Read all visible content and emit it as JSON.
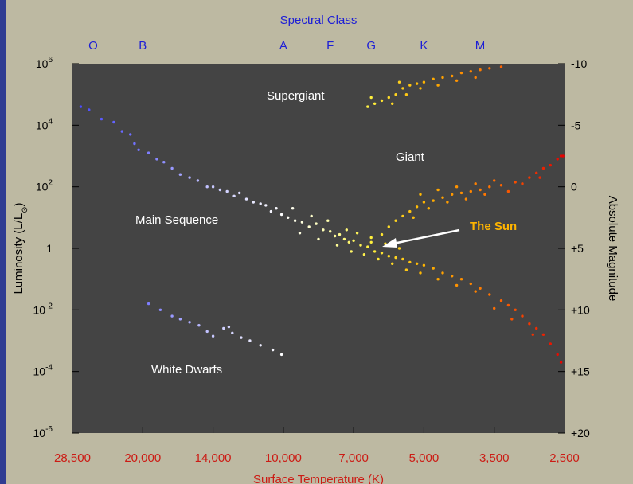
{
  "chart_data": {
    "type": "scatter",
    "title": "",
    "top_axis": {
      "title": "Spectral Class",
      "classes": [
        {
          "label": "O",
          "temp": 26000
        },
        {
          "label": "B",
          "temp": 20000
        },
        {
          "label": "A",
          "temp": 10000
        },
        {
          "label": "F",
          "temp": 8000
        },
        {
          "label": "G",
          "temp": 6500
        },
        {
          "label": "K",
          "temp": 5000
        },
        {
          "label": "M",
          "temp": 3800
        }
      ]
    },
    "x_axis": {
      "title": "Surface Temperature (K)",
      "ticks": [
        {
          "label": "28,500",
          "value": 28500
        },
        {
          "label": "20,000",
          "value": 20000
        },
        {
          "label": "14,000",
          "value": 14000
        },
        {
          "label": "10,000",
          "value": 10000
        },
        {
          "label": "7,000",
          "value": 7000
        },
        {
          "label": "5,000",
          "value": 5000
        },
        {
          "label": "3,500",
          "value": 3500
        },
        {
          "label": "2,500",
          "value": 2500
        }
      ]
    },
    "y_left": {
      "title_main": "Luminosity (L/L",
      "title_sub": "⊙",
      "title_end": ")",
      "ticks": [
        {
          "base": "10",
          "exp": "6",
          "value": 6
        },
        {
          "base": "10",
          "exp": "4",
          "value": 4
        },
        {
          "base": "10",
          "exp": "2",
          "value": 2
        },
        {
          "base": "1",
          "exp": "",
          "value": 0
        },
        {
          "base": "10",
          "exp": "-2",
          "value": -2
        },
        {
          "base": "10",
          "exp": "-4",
          "value": -4
        },
        {
          "base": "10",
          "exp": "-6",
          "value": -6
        }
      ]
    },
    "y_right": {
      "title": "Absolute Magnitude",
      "ticks": [
        "-10",
        "-5",
        "0",
        "+5",
        "+10",
        "+15",
        "+20"
      ]
    },
    "regions": {
      "supergiant": "Supergiant",
      "giant": "Giant",
      "main_sequence": "Main Sequence",
      "white_dwarfs": "White Dwarfs",
      "sun": "The Sun"
    },
    "series": [
      {
        "group": "main-sequence",
        "points": [
          [
            27500,
            4.6
          ],
          [
            26500,
            4.5
          ],
          [
            25000,
            4.2
          ],
          [
            23500,
            4.1
          ],
          [
            22500,
            3.8
          ],
          [
            21500,
            3.7
          ],
          [
            21000,
            3.4
          ],
          [
            20500,
            3.2
          ],
          [
            19500,
            3.1
          ],
          [
            18800,
            2.9
          ],
          [
            18200,
            2.8
          ],
          [
            17500,
            2.6
          ],
          [
            16800,
            2.4
          ],
          [
            16000,
            2.3
          ],
          [
            15300,
            2.2
          ],
          [
            14500,
            2.0
          ],
          [
            14000,
            2.0
          ],
          [
            13600,
            1.9
          ],
          [
            13200,
            1.85
          ],
          [
            12800,
            1.7
          ],
          [
            12500,
            1.8
          ],
          [
            12100,
            1.6
          ],
          [
            11700,
            1.5
          ],
          [
            11300,
            1.45
          ],
          [
            11000,
            1.4
          ],
          [
            10700,
            1.2
          ],
          [
            10400,
            1.3
          ],
          [
            10100,
            1.1
          ],
          [
            9800,
            1.0
          ],
          [
            9500,
            0.9
          ],
          [
            9200,
            0.85
          ],
          [
            8900,
            0.7
          ],
          [
            8600,
            0.8
          ],
          [
            8300,
            0.6
          ],
          [
            8000,
            0.55
          ],
          [
            7800,
            0.4
          ],
          [
            7600,
            0.45
          ],
          [
            7400,
            0.3
          ],
          [
            7200,
            0.2
          ],
          [
            7000,
            0.25
          ],
          [
            6800,
            0.1
          ],
          [
            6600,
            0.05
          ],
          [
            6400,
            -0.1
          ],
          [
            6200,
            -0.15
          ],
          [
            6000,
            -0.25
          ],
          [
            5800,
            -0.3
          ],
          [
            5600,
            -0.35
          ],
          [
            5400,
            -0.45
          ],
          [
            5200,
            -0.5
          ],
          [
            5000,
            -0.55
          ],
          [
            4800,
            -0.65
          ],
          [
            4600,
            -0.8
          ],
          [
            4400,
            -0.9
          ],
          [
            4200,
            -1.0
          ],
          [
            4000,
            -1.15
          ],
          [
            3800,
            -1.3
          ],
          [
            3600,
            -1.5
          ],
          [
            3400,
            -1.7
          ],
          [
            3300,
            -1.85
          ],
          [
            3200,
            -2.0
          ],
          [
            3100,
            -2.2
          ],
          [
            3000,
            -2.45
          ],
          [
            2900,
            -2.6
          ],
          [
            2800,
            -2.8
          ],
          [
            2700,
            -3.1
          ],
          [
            2600,
            -3.45
          ],
          [
            2550,
            -3.7
          ],
          [
            9600,
            1.3
          ],
          [
            8800,
            1.05
          ],
          [
            8100,
            0.9
          ],
          [
            7300,
            0.6
          ],
          [
            6900,
            0.5
          ],
          [
            6500,
            0.35
          ],
          [
            6100,
            0.15
          ],
          [
            5700,
            0.0
          ],
          [
            9300,
            0.5
          ],
          [
            8500,
            0.3
          ],
          [
            7700,
            0.1
          ],
          [
            7100,
            -0.1
          ],
          [
            6700,
            -0.2
          ],
          [
            6300,
            -0.35
          ],
          [
            5900,
            -0.5
          ],
          [
            5500,
            -0.7
          ],
          [
            5100,
            -0.8
          ],
          [
            4700,
            -1.0
          ],
          [
            4300,
            -1.2
          ],
          [
            3900,
            -1.4
          ],
          [
            3500,
            -1.95
          ],
          [
            3250,
            -2.3
          ],
          [
            2950,
            -2.8
          ]
        ]
      },
      {
        "group": "giant",
        "points": [
          [
            6500,
            0.2
          ],
          [
            6200,
            0.45
          ],
          [
            6000,
            0.7
          ],
          [
            5800,
            0.9
          ],
          [
            5600,
            1.05
          ],
          [
            5400,
            1.2
          ],
          [
            5200,
            1.35
          ],
          [
            5000,
            1.5
          ],
          [
            4800,
            1.55
          ],
          [
            4600,
            1.65
          ],
          [
            4400,
            1.75
          ],
          [
            4200,
            1.8
          ],
          [
            4000,
            1.85
          ],
          [
            3800,
            1.9
          ],
          [
            3600,
            2.0
          ],
          [
            3400,
            2.05
          ],
          [
            3200,
            2.15
          ],
          [
            3000,
            2.3
          ],
          [
            2900,
            2.45
          ],
          [
            2800,
            2.6
          ],
          [
            2700,
            2.7
          ],
          [
            2600,
            2.9
          ],
          [
            5300,
            1.0
          ],
          [
            4900,
            1.3
          ],
          [
            4500,
            1.5
          ],
          [
            4100,
            1.6
          ],
          [
            3700,
            1.75
          ],
          [
            3300,
            1.85
          ],
          [
            3100,
            2.1
          ],
          [
            5100,
            1.75
          ],
          [
            4700,
            1.9
          ],
          [
            4300,
            2.0
          ],
          [
            3900,
            2.1
          ],
          [
            3500,
            2.2
          ],
          [
            2850,
            2.3
          ],
          [
            2550,
            3.0
          ],
          [
            2520,
            3.0
          ]
        ]
      },
      {
        "group": "supergiant",
        "points": [
          [
            6600,
            4.6
          ],
          [
            6400,
            4.7
          ],
          [
            6200,
            4.8
          ],
          [
            6000,
            4.9
          ],
          [
            5800,
            5.0
          ],
          [
            5600,
            5.2
          ],
          [
            5400,
            5.3
          ],
          [
            5200,
            5.35
          ],
          [
            5000,
            5.4
          ],
          [
            4800,
            5.5
          ],
          [
            4600,
            5.55
          ],
          [
            4400,
            5.6
          ],
          [
            4200,
            5.7
          ],
          [
            4000,
            5.75
          ],
          [
            3800,
            5.8
          ],
          [
            3600,
            5.85
          ],
          [
            3400,
            5.9
          ],
          [
            5900,
            4.7
          ],
          [
            5500,
            5.0
          ],
          [
            5100,
            5.2
          ],
          [
            4700,
            5.3
          ],
          [
            4300,
            5.45
          ],
          [
            3900,
            5.55
          ],
          [
            6500,
            4.9
          ],
          [
            5700,
            5.4
          ]
        ]
      },
      {
        "group": "white-dwarf",
        "points": [
          [
            19500,
            -1.8
          ],
          [
            18500,
            -2.0
          ],
          [
            17500,
            -2.2
          ],
          [
            16800,
            -2.3
          ],
          [
            16000,
            -2.4
          ],
          [
            15200,
            -2.5
          ],
          [
            14500,
            -2.7
          ],
          [
            14000,
            -2.85
          ],
          [
            13400,
            -2.6
          ],
          [
            12900,
            -2.75
          ],
          [
            12400,
            -2.9
          ],
          [
            11900,
            -3.0
          ],
          [
            11300,
            -3.15
          ],
          [
            10600,
            -3.3
          ],
          [
            10100,
            -3.45
          ],
          [
            13100,
            -2.55
          ]
        ]
      }
    ],
    "sun": {
      "temp": 5800,
      "luminosity": 0
    },
    "xlim": [
      28500,
      2500
    ],
    "ylim": [
      -6,
      6
    ],
    "grid": false
  }
}
